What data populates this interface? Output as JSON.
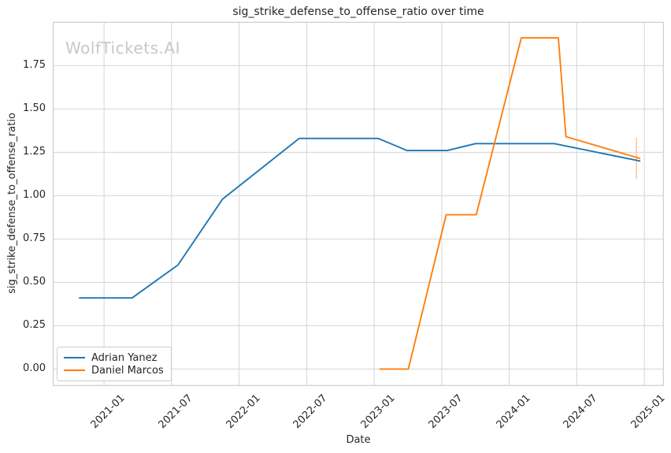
{
  "figure": {
    "title": "sig_strike_defense_to_offense_ratio over time",
    "watermark": "WolfTickets.AI",
    "xlabel": "Date",
    "ylabel": "sig_strike_defense_to_offense_ratio"
  },
  "chart_data": {
    "type": "line",
    "title": "sig_strike_defense_to_offense_ratio over time",
    "xlabel": "Date",
    "ylabel": "sig_strike_defense_to_offense_ratio",
    "watermark": "WolfTickets.AI",
    "grid": true,
    "legend_position": "lower left",
    "x_tick_labels": [
      "2021-01",
      "2021-07",
      "2022-01",
      "2022-07",
      "2023-01",
      "2023-07",
      "2024-01",
      "2024-07",
      "2025-01"
    ],
    "y_tick_labels": [
      "0.00",
      "0.25",
      "0.50",
      "0.75",
      "1.00",
      "1.25",
      "1.50",
      "1.75"
    ],
    "ylim": [
      -0.095,
      2.0
    ],
    "xlim_dates": [
      "2020-08-16",
      "2025-02-22"
    ],
    "colors": {
      "grid": "#d5d5d5",
      "spine": "#cccccc",
      "text": "#262626",
      "watermark": "#c8c8c8"
    },
    "series": [
      {
        "name": "Adrian Yanez",
        "color": "#1f77b4",
        "points": [
          [
            "2020-10-26",
            0.41
          ],
          [
            "2021-03-16",
            0.41
          ],
          [
            "2021-07-18",
            0.6
          ],
          [
            "2021-11-17",
            0.98
          ],
          [
            "2022-06-11",
            1.33
          ],
          [
            "2023-01-12",
            1.33
          ],
          [
            "2023-03-29",
            1.26
          ],
          [
            "2023-07-16",
            1.26
          ],
          [
            "2023-10-01",
            1.3
          ],
          [
            "2024-05-01",
            1.3
          ],
          [
            "2024-12-19",
            1.2
          ]
        ]
      },
      {
        "name": "Daniel Marcos",
        "color": "#ff7f0e",
        "points": [
          [
            "2023-01-17",
            0.0
          ],
          [
            "2023-04-02",
            0.0
          ],
          [
            "2023-07-13",
            0.89
          ],
          [
            "2023-10-03",
            0.89
          ],
          [
            "2024-02-03",
            1.91
          ],
          [
            "2024-05-12",
            1.91
          ],
          [
            "2024-06-02",
            1.34
          ],
          [
            "2024-12-19",
            1.215
          ]
        ],
        "error_bar": {
          "date": "2024-12-10",
          "low": 1.095,
          "high": 1.335,
          "color": "#ffc69b"
        }
      }
    ]
  }
}
